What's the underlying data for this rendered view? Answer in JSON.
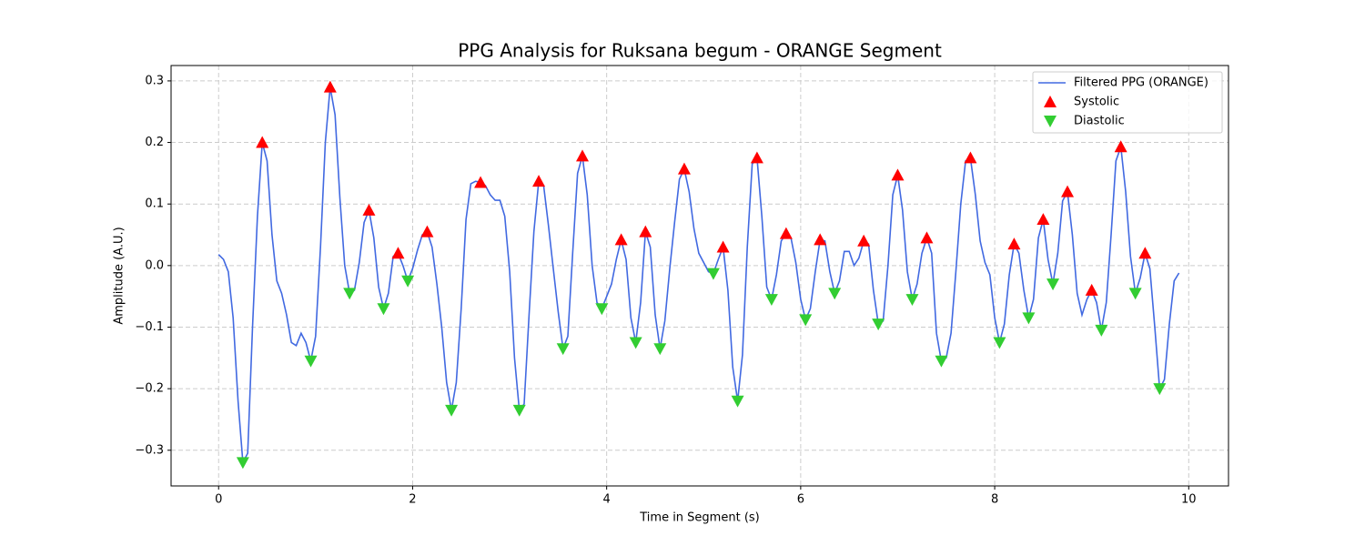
{
  "chart_data": {
    "type": "line",
    "title": "PPG Analysis for Ruksana begum - ORANGE Segment",
    "x_label": "Time in Segment (s)",
    "y_label": "Amplitude (A.U.)",
    "xlim": [
      -0.49,
      10.41
    ],
    "ylim": [
      -0.358,
      0.325
    ],
    "xticks": [
      0,
      2,
      4,
      6,
      8,
      10
    ],
    "yticks": [
      {
        "value": -0.3,
        "label": "−0.3"
      },
      {
        "value": -0.2,
        "label": "−0.2"
      },
      {
        "value": -0.1,
        "label": "−0.1"
      },
      {
        "value": 0,
        "label": "0.0"
      },
      0.1,
      0.2,
      0.3
    ],
    "grid": true,
    "legend": "upper right",
    "series": [
      {
        "name": "Filtered PPG (ORANGE)",
        "color": "#4169e1",
        "type": "line",
        "x": [
          0,
          0.05,
          0.1,
          0.15,
          0.2,
          0.25,
          0.3,
          0.35,
          0.4,
          0.45,
          0.5,
          0.55,
          0.6,
          0.65,
          0.7,
          0.75,
          0.8,
          0.85,
          0.9,
          0.95,
          1.0,
          1.05,
          1.1,
          1.15,
          1.2,
          1.25,
          1.3,
          1.35,
          1.4,
          1.45,
          1.5,
          1.55,
          1.6,
          1.65,
          1.7,
          1.75,
          1.8,
          1.85,
          1.9,
          1.95,
          2.0,
          2.05,
          2.1,
          2.15,
          2.2,
          2.25,
          2.3,
          2.35,
          2.4,
          2.45,
          2.5,
          2.55,
          2.6,
          2.65,
          2.7,
          2.75,
          2.8,
          2.85,
          2.9,
          2.95,
          3.0,
          3.05,
          3.1,
          3.15,
          3.2,
          3.25,
          3.3,
          3.35,
          3.4,
          3.45,
          3.5,
          3.55,
          3.6,
          3.65,
          3.7,
          3.75,
          3.8,
          3.85,
          3.9,
          3.95,
          4.0,
          4.05,
          4.1,
          4.15,
          4.2,
          4.25,
          4.3,
          4.35,
          4.4,
          4.45,
          4.5,
          4.55,
          4.6,
          4.65,
          4.7,
          4.75,
          4.8,
          4.85,
          4.9,
          4.95,
          5.0,
          5.05,
          5.1,
          5.15,
          5.2,
          5.25,
          5.3,
          5.35,
          5.4,
          5.45,
          5.5,
          5.55,
          5.6,
          5.65,
          5.7,
          5.75,
          5.8,
          5.85,
          5.9,
          5.95,
          6.0,
          6.05,
          6.1,
          6.15,
          6.2,
          6.25,
          6.3,
          6.35,
          6.4,
          6.45,
          6.5,
          6.55,
          6.6,
          6.65,
          6.7,
          6.75,
          6.8,
          6.85,
          6.9,
          6.95,
          7.0,
          7.05,
          7.1,
          7.15,
          7.2,
          7.25,
          7.3,
          7.35,
          7.4,
          7.45,
          7.5,
          7.55,
          7.6,
          7.65,
          7.7,
          7.75,
          7.8,
          7.85,
          7.9,
          7.95,
          8.0,
          8.05,
          8.1,
          8.15,
          8.2,
          8.25,
          8.3,
          8.35,
          8.4,
          8.45,
          8.5,
          8.55,
          8.6,
          8.65,
          8.7,
          8.75,
          8.8,
          8.85,
          8.9,
          8.95,
          9.0,
          9.05,
          9.1,
          9.15,
          9.2,
          9.25,
          9.3,
          9.35,
          9.4,
          9.45,
          9.5,
          9.55,
          9.6,
          9.65,
          9.7,
          9.75,
          9.8,
          9.85,
          9.9
        ],
        "values": [
          0.018,
          0.01,
          -0.01,
          -0.085,
          -0.22,
          -0.32,
          -0.305,
          -0.1,
          0.08,
          0.2,
          0.17,
          0.05,
          -0.025,
          -0.045,
          -0.08,
          -0.125,
          -0.13,
          -0.11,
          -0.125,
          -0.155,
          -0.115,
          0.03,
          0.2,
          0.29,
          0.245,
          0.11,
          0.0,
          -0.045,
          -0.04,
          0.005,
          0.07,
          0.09,
          0.045,
          -0.035,
          -0.07,
          -0.045,
          0.015,
          0.02,
          0.0,
          -0.025,
          -0.005,
          0.025,
          0.05,
          0.055,
          0.03,
          -0.03,
          -0.1,
          -0.19,
          -0.235,
          -0.19,
          -0.07,
          0.075,
          0.133,
          0.137,
          0.135,
          0.13,
          0.115,
          0.106,
          0.106,
          0.08,
          -0.01,
          -0.15,
          -0.235,
          -0.225,
          -0.08,
          0.055,
          0.137,
          0.13,
          0.065,
          -0.005,
          -0.075,
          -0.135,
          -0.115,
          0.02,
          0.15,
          0.178,
          0.115,
          0.0,
          -0.06,
          -0.07,
          -0.05,
          -0.03,
          0.01,
          0.042,
          0.01,
          -0.085,
          -0.125,
          -0.06,
          0.055,
          0.03,
          -0.08,
          -0.135,
          -0.09,
          -0.005,
          0.07,
          0.14,
          0.157,
          0.12,
          0.06,
          0.02,
          0.005,
          -0.01,
          -0.013,
          0.01,
          0.03,
          -0.04,
          -0.165,
          -0.22,
          -0.145,
          0.03,
          0.165,
          0.175,
          0.08,
          -0.035,
          -0.055,
          -0.015,
          0.04,
          0.052,
          0.045,
          0.005,
          -0.055,
          -0.088,
          -0.07,
          -0.01,
          0.042,
          0.04,
          -0.01,
          -0.045,
          -0.025,
          0.023,
          0.023,
          0.0,
          0.012,
          0.04,
          0.035,
          -0.04,
          -0.095,
          -0.09,
          0.0,
          0.115,
          0.147,
          0.09,
          -0.01,
          -0.055,
          -0.03,
          0.02,
          0.045,
          0.02,
          -0.11,
          -0.155,
          -0.15,
          -0.11,
          -0.01,
          0.1,
          0.17,
          0.175,
          0.115,
          0.04,
          0.005,
          -0.015,
          -0.085,
          -0.125,
          -0.095,
          -0.015,
          0.035,
          0.02,
          -0.04,
          -0.085,
          -0.055,
          0.045,
          0.075,
          0.01,
          -0.03,
          0.02,
          0.105,
          0.12,
          0.05,
          -0.045,
          -0.08,
          -0.055,
          -0.04,
          -0.06,
          -0.105,
          -0.06,
          0.05,
          0.17,
          0.193,
          0.12,
          0.015,
          -0.045,
          -0.02,
          0.02,
          -0.005,
          -0.1,
          -0.2,
          -0.185,
          -0.095,
          -0.025,
          -0.012
        ]
      },
      {
        "name": "Systolic",
        "color": "#ff0000",
        "type": "scatter",
        "marker": "triangle-up",
        "x": [
          0.45,
          1.15,
          1.55,
          1.85,
          2.15,
          2.7,
          3.3,
          3.75,
          4.15,
          4.4,
          4.8,
          5.2,
          5.55,
          5.85,
          6.2,
          6.65,
          7.0,
          7.3,
          7.75,
          8.2,
          8.5,
          8.75,
          9.0,
          9.3,
          9.55
        ],
        "values": [
          0.2,
          0.29,
          0.09,
          0.02,
          0.055,
          0.135,
          0.137,
          0.178,
          0.042,
          0.055,
          0.157,
          0.03,
          0.175,
          0.052,
          0.042,
          0.04,
          0.147,
          0.045,
          0.175,
          0.035,
          0.075,
          0.12,
          -0.04,
          0.193,
          0.02
        ]
      },
      {
        "name": "Diastolic",
        "color": "#32cd32",
        "type": "scatter",
        "marker": "triangle-down",
        "x": [
          0.25,
          0.95,
          1.35,
          1.7,
          1.95,
          2.4,
          3.1,
          3.55,
          3.95,
          4.3,
          4.55,
          5.1,
          5.35,
          5.7,
          6.05,
          6.35,
          6.8,
          7.15,
          7.45,
          8.05,
          8.35,
          8.6,
          9.1,
          9.45,
          9.7
        ],
        "values": [
          -0.32,
          -0.155,
          -0.045,
          -0.07,
          -0.025,
          -0.235,
          -0.235,
          -0.135,
          -0.07,
          -0.125,
          -0.135,
          -0.013,
          -0.22,
          -0.055,
          -0.088,
          -0.045,
          -0.095,
          -0.055,
          -0.155,
          -0.125,
          -0.085,
          -0.03,
          -0.105,
          -0.045,
          -0.2
        ]
      }
    ]
  }
}
